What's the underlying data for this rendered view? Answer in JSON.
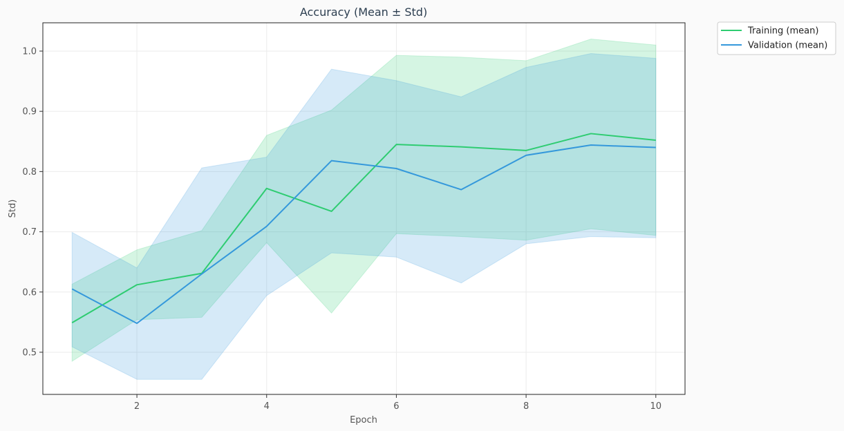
{
  "chart_data": {
    "type": "line",
    "title": "Accuracy (Mean ± Std)",
    "xlabel": "Epoch",
    "ylabel": "Std)",
    "xlim": [
      0.55,
      10.45
    ],
    "ylim": [
      0.43,
      1.047
    ],
    "xticks": [
      2,
      4,
      6,
      8,
      10
    ],
    "yticks": [
      0.5,
      0.6,
      0.7,
      0.8,
      0.9,
      1.0
    ],
    "yticklabels": [
      "0.5",
      "0.6",
      "0.7",
      "0.8",
      "0.9",
      "1.0"
    ],
    "grid": true,
    "legend_position": "outside-top-right",
    "x": [
      1,
      2,
      3,
      4,
      5,
      6,
      7,
      8,
      9,
      10
    ],
    "series": [
      {
        "name": "Training (mean)",
        "color": "#2ecc71",
        "mean": [
          0.549,
          0.612,
          0.631,
          0.772,
          0.734,
          0.845,
          0.841,
          0.835,
          0.863,
          0.852
        ],
        "upper": [
          0.613,
          0.67,
          0.702,
          0.86,
          0.902,
          0.993,
          0.99,
          0.984,
          1.02,
          1.01
        ],
        "lower": [
          0.485,
          0.554,
          0.558,
          0.682,
          0.565,
          0.697,
          0.692,
          0.686,
          0.705,
          0.694
        ]
      },
      {
        "name": "Validation (mean)",
        "color": "#3498db",
        "mean": [
          0.605,
          0.548,
          0.63,
          0.709,
          0.818,
          0.805,
          0.77,
          0.827,
          0.844,
          0.84
        ],
        "upper": [
          0.699,
          0.64,
          0.806,
          0.824,
          0.97,
          0.951,
          0.924,
          0.973,
          0.996,
          0.988
        ],
        "lower": [
          0.509,
          0.455,
          0.455,
          0.594,
          0.665,
          0.658,
          0.615,
          0.68,
          0.692,
          0.69
        ]
      }
    ]
  }
}
